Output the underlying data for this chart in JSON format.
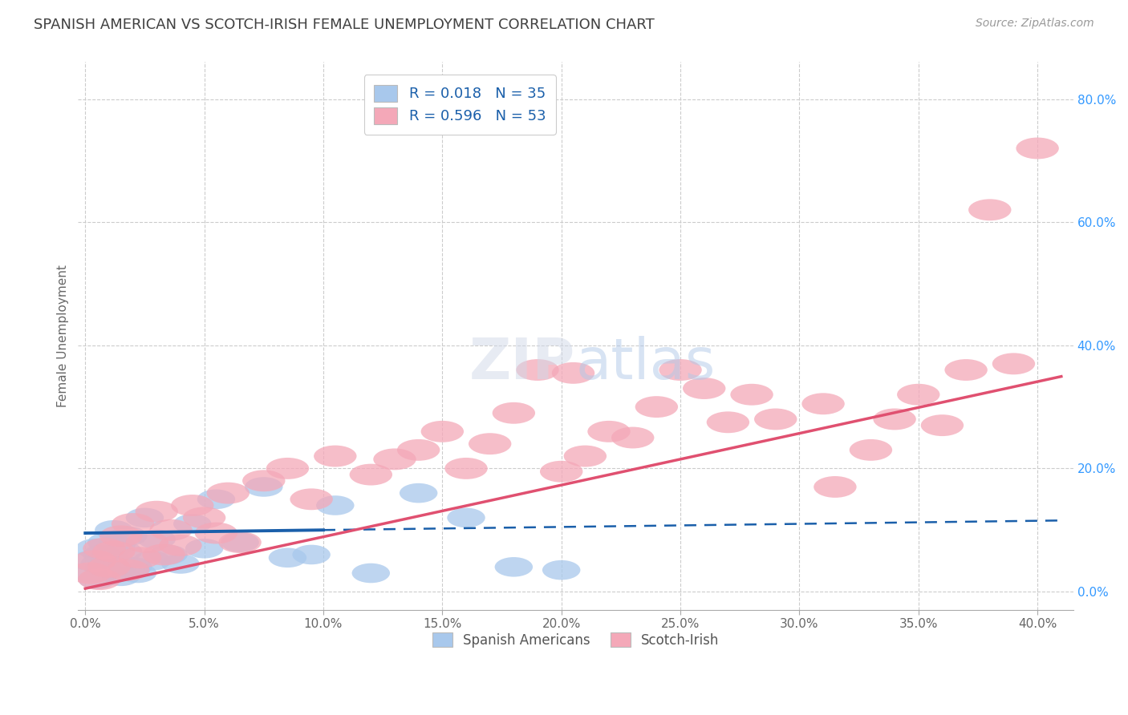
{
  "title": "SPANISH AMERICAN VS SCOTCH-IRISH FEMALE UNEMPLOYMENT CORRELATION CHART",
  "source": "Source: ZipAtlas.com",
  "ylabel": "Female Unemployment",
  "x_tick_labels": [
    "0.0%",
    "5.0%",
    "10.0%",
    "15.0%",
    "20.0%",
    "25.0%",
    "30.0%",
    "35.0%",
    "40.0%"
  ],
  "x_tick_values": [
    0,
    5,
    10,
    15,
    20,
    25,
    30,
    35,
    40
  ],
  "y_tick_labels_right": [
    "80.0%",
    "60.0%",
    "40.0%",
    "20.0%",
    "0.0%"
  ],
  "y_tick_values_right": [
    80,
    60,
    40,
    20,
    0
  ],
  "xlim": [
    -0.3,
    41.5
  ],
  "ylim": [
    -3,
    86
  ],
  "legend_R1": "R = 0.018",
  "legend_N1": "N = 35",
  "legend_R2": "R = 0.596",
  "legend_N2": "N = 53",
  "color_blue": "#a8c8ec",
  "color_pink": "#f4a8b8",
  "color_blue_line": "#1a5faa",
  "color_pink_line": "#e05070",
  "color_title": "#404040",
  "color_source": "#999999",
  "background_color": "#ffffff",
  "grid_color": "#cccccc",
  "blue_scatter_x": [
    0.2,
    0.3,
    0.4,
    0.5,
    0.6,
    0.7,
    0.8,
    0.9,
    1.0,
    1.1,
    1.2,
    1.3,
    1.5,
    1.6,
    1.8,
    2.0,
    2.2,
    2.5,
    2.8,
    3.0,
    3.5,
    4.0,
    4.5,
    5.0,
    5.5,
    6.5,
    7.5,
    8.5,
    9.5,
    10.5,
    12.0,
    14.0,
    16.0,
    18.0,
    20.0
  ],
  "blue_scatter_y": [
    5.0,
    3.0,
    7.0,
    2.0,
    4.5,
    6.0,
    3.5,
    8.0,
    5.5,
    4.0,
    10.0,
    7.5,
    2.5,
    6.5,
    9.0,
    4.0,
    3.0,
    12.0,
    5.0,
    8.5,
    6.0,
    4.5,
    11.0,
    7.0,
    15.0,
    8.0,
    17.0,
    5.5,
    6.0,
    14.0,
    3.0,
    16.0,
    12.0,
    4.0,
    3.5
  ],
  "pink_scatter_x": [
    0.2,
    0.4,
    0.6,
    0.8,
    1.0,
    1.2,
    1.5,
    1.8,
    2.0,
    2.3,
    2.6,
    3.0,
    3.3,
    3.6,
    4.0,
    4.5,
    5.0,
    5.5,
    6.0,
    6.5,
    7.5,
    8.5,
    9.5,
    10.5,
    12.0,
    13.0,
    14.0,
    15.0,
    16.0,
    17.0,
    18.0,
    19.0,
    20.0,
    21.0,
    22.0,
    23.0,
    24.0,
    25.0,
    26.0,
    27.0,
    28.0,
    29.0,
    31.0,
    33.0,
    34.0,
    35.0,
    36.0,
    37.0,
    38.0,
    39.0,
    40.0,
    20.5,
    31.5
  ],
  "pink_scatter_y": [
    3.0,
    5.0,
    2.0,
    7.0,
    4.0,
    6.5,
    9.0,
    3.5,
    11.0,
    5.5,
    8.0,
    13.0,
    6.0,
    10.0,
    7.5,
    14.0,
    12.0,
    9.5,
    16.0,
    8.0,
    18.0,
    20.0,
    15.0,
    22.0,
    19.0,
    21.5,
    23.0,
    26.0,
    20.0,
    24.0,
    29.0,
    36.0,
    19.5,
    22.0,
    26.0,
    25.0,
    30.0,
    36.0,
    33.0,
    27.5,
    32.0,
    28.0,
    30.5,
    23.0,
    28.0,
    32.0,
    27.0,
    36.0,
    62.0,
    37.0,
    72.0,
    35.5,
    17.0
  ],
  "blue_line_x_solid_start": 0,
  "blue_line_x_solid_end": 10,
  "blue_line_x_dashed_start": 10,
  "blue_line_x_dashed_end": 41,
  "blue_line_intercept": 9.5,
  "blue_line_slope": 0.05,
  "pink_line_x_start": 0,
  "pink_line_x_end": 41,
  "pink_line_intercept": 0.5,
  "pink_line_slope": 0.84
}
